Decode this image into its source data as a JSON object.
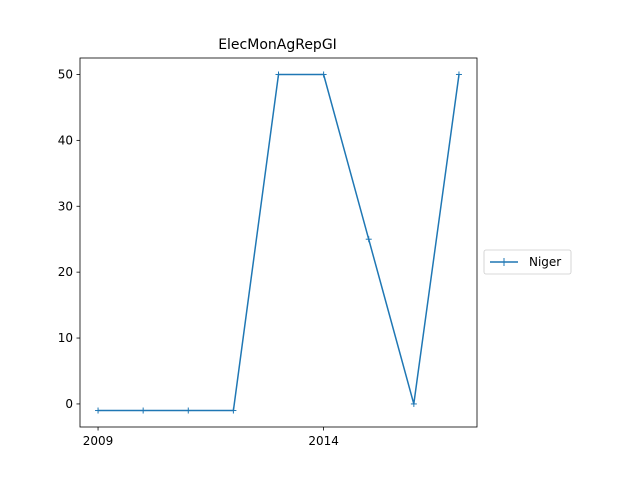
{
  "chart_data": {
    "type": "line",
    "title": "ElecMonAgRepGI",
    "xlabel": "",
    "ylabel": "",
    "xlim": [
      2008.6,
      2017.4
    ],
    "ylim": [
      -3.5,
      52.5
    ],
    "xticks": [
      2009,
      2014
    ],
    "yticks": [
      0,
      10,
      20,
      30,
      40,
      50
    ],
    "grid": false,
    "legend_position": "center-right-outside",
    "series": [
      {
        "name": "Niger",
        "color": "#1f77b4",
        "marker": "plus",
        "points": [
          {
            "x": 2009,
            "y": -1
          },
          {
            "x": 2010,
            "y": -1
          },
          {
            "x": 2011,
            "y": -1
          },
          {
            "x": 2012,
            "y": -1
          },
          {
            "x": 2013,
            "y": 50
          },
          {
            "x": 2014,
            "y": 50
          },
          {
            "x": 2015,
            "y": 25
          },
          {
            "x": 2016,
            "y": 0
          },
          {
            "x": 2017,
            "y": 50
          }
        ]
      }
    ]
  }
}
